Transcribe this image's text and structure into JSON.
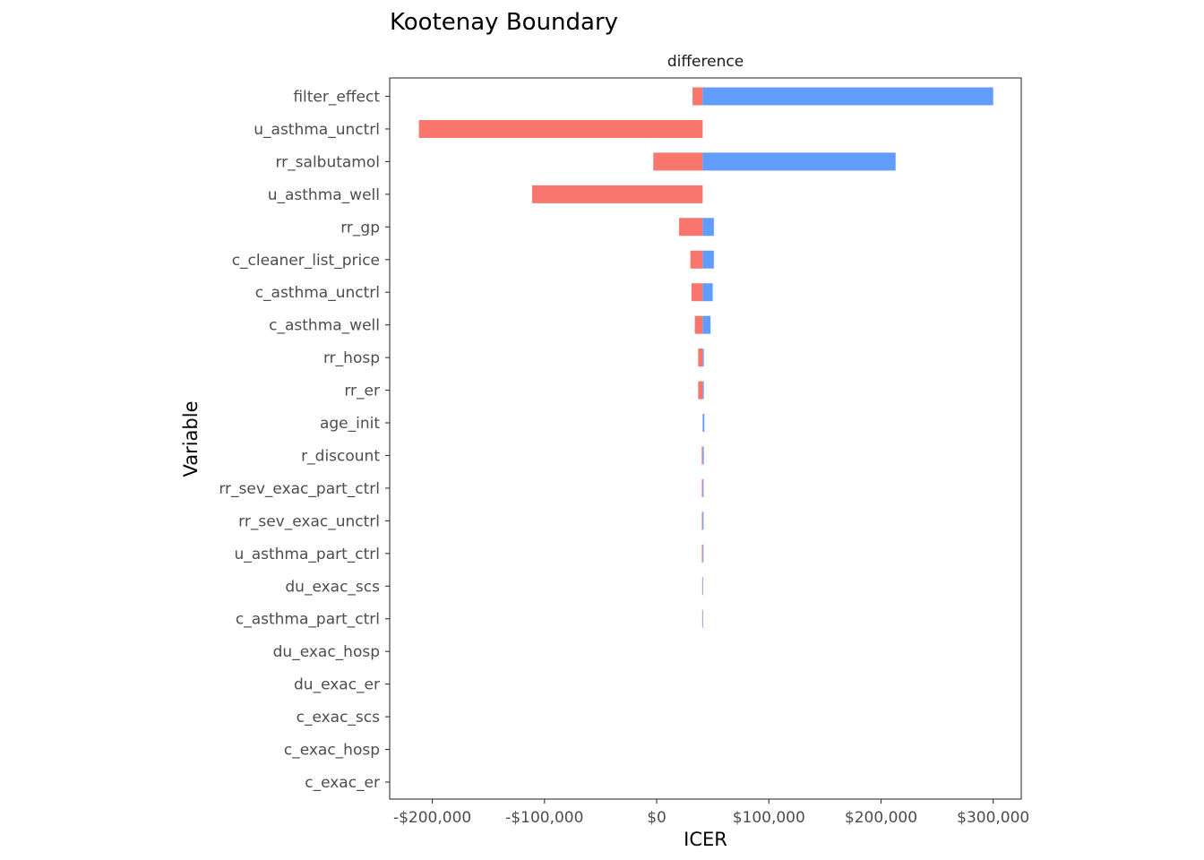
{
  "chart_data": {
    "type": "bar",
    "orientation": "horizontal",
    "title": "Kootenay Boundary",
    "facet_label": "difference",
    "xlabel": "ICER",
    "ylabel": "Variable",
    "xlim": [
      -238000,
      325000
    ],
    "base_value": 41000,
    "x_ticks": [
      {
        "value": -200000,
        "label": "-$200,000"
      },
      {
        "value": -100000,
        "label": "-$100,000"
      },
      {
        "value": 0,
        "label": "$0"
      },
      {
        "value": 100000,
        "label": "$100,000"
      },
      {
        "value": 200000,
        "label": "$200,000"
      },
      {
        "value": 300000,
        "label": "$300,000"
      }
    ],
    "colors": {
      "low_side": "#F8766D",
      "high_side": "#619CFF"
    },
    "variables": [
      {
        "name": "filter_effect",
        "low": 32000,
        "high": 300000
      },
      {
        "name": "u_asthma_unctrl",
        "low": -212000,
        "high": 41000
      },
      {
        "name": "rr_salbutamol",
        "low": -3000,
        "high": 213000
      },
      {
        "name": "u_asthma_well",
        "low": -111000,
        "high": 41000
      },
      {
        "name": "rr_gp",
        "low": 20000,
        "high": 51000
      },
      {
        "name": "c_cleaner_list_price",
        "low": 30000,
        "high": 51000
      },
      {
        "name": "c_asthma_unctrl",
        "low": 31000,
        "high": 50000
      },
      {
        "name": "c_asthma_well",
        "low": 34000,
        "high": 48000
      },
      {
        "name": "rr_hosp",
        "low": 37000,
        "high": 42000
      },
      {
        "name": "rr_er",
        "low": 37000,
        "high": 42000
      },
      {
        "name": "age_init",
        "low": 41000,
        "high": 42500
      },
      {
        "name": "r_discount",
        "low": 40200,
        "high": 42000
      },
      {
        "name": "rr_sev_exac_part_ctrl",
        "low": 40300,
        "high": 41800
      },
      {
        "name": "rr_sev_exac_unctrl",
        "low": 40300,
        "high": 41800
      },
      {
        "name": "u_asthma_part_ctrl",
        "low": 40300,
        "high": 41700
      },
      {
        "name": "du_exac_scs",
        "low": 40600,
        "high": 41400
      },
      {
        "name": "c_asthma_part_ctrl",
        "low": 40600,
        "high": 41400
      },
      {
        "name": "du_exac_hosp",
        "low": 41000,
        "high": 41000
      },
      {
        "name": "du_exac_er",
        "low": 41000,
        "high": 41000
      },
      {
        "name": "c_exac_scs",
        "low": 41000,
        "high": 41000
      },
      {
        "name": "c_exac_hosp",
        "low": 41000,
        "high": 41000
      },
      {
        "name": "c_exac_er",
        "low": 41000,
        "high": 41000
      }
    ]
  }
}
